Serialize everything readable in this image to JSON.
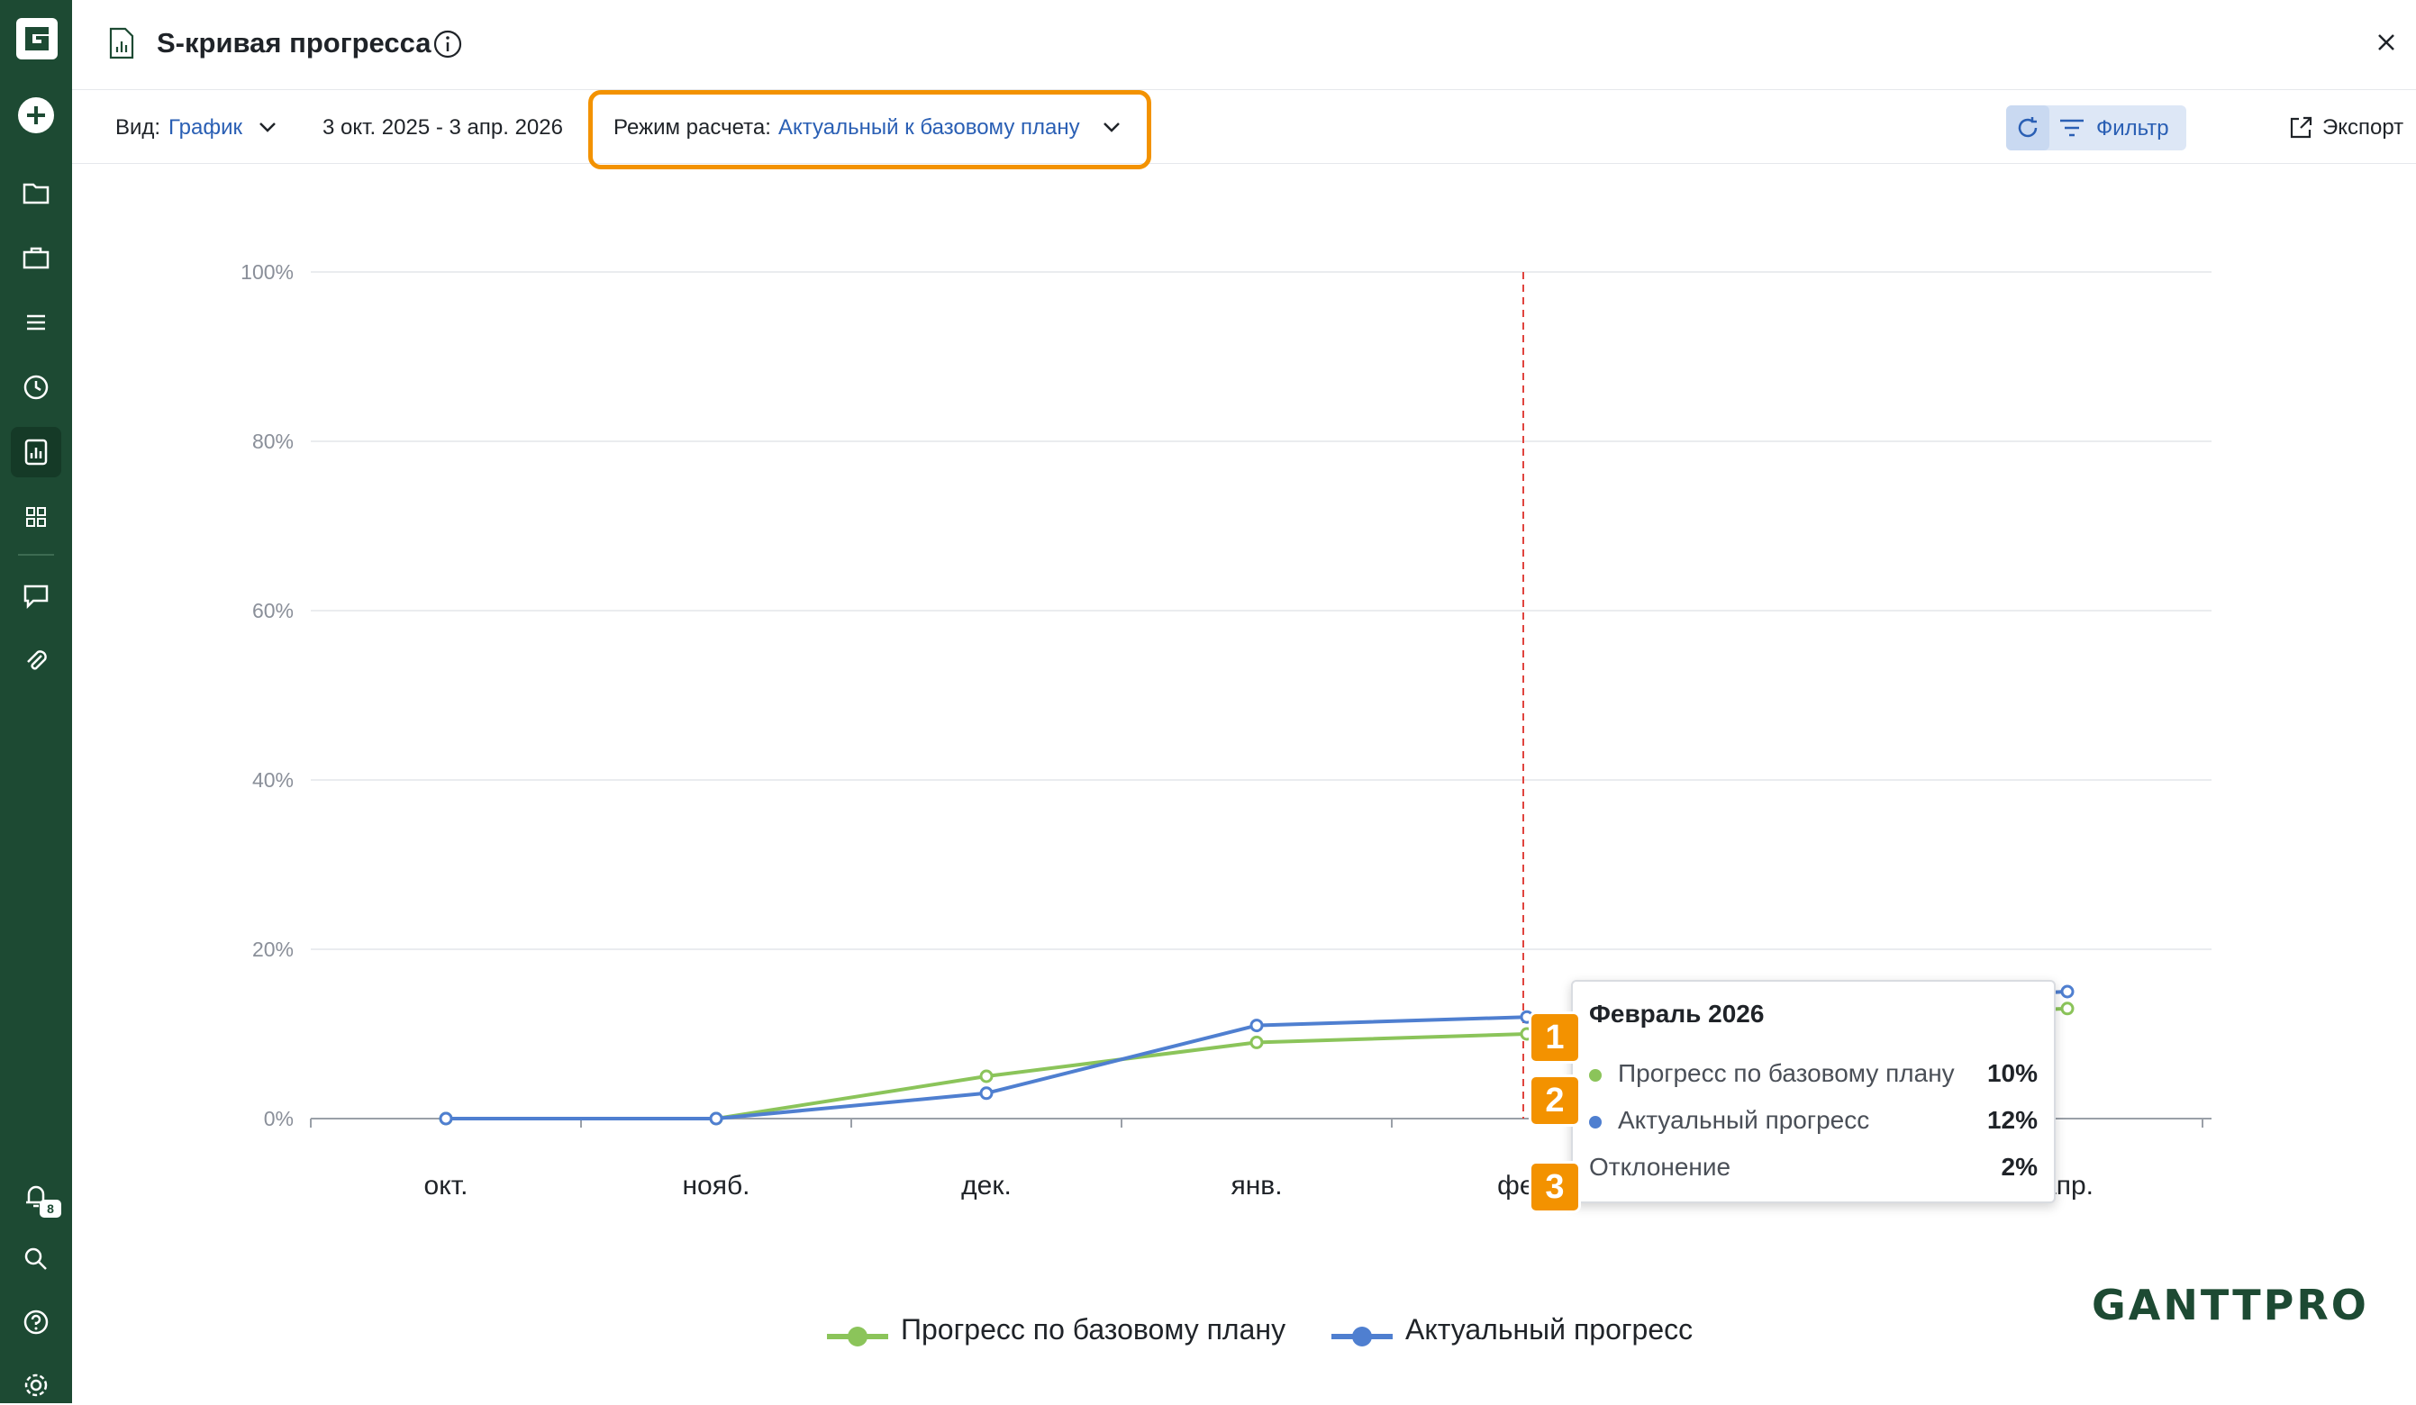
{
  "header": {
    "title": "S-кривая прогресса"
  },
  "toolbar": {
    "view_label": "Вид:",
    "view_value": "График",
    "date_range": "3 окт. 2025 - 3 апр. 2026",
    "mode_label": "Режим расчета:",
    "mode_value": "Актуальный к базовому плану",
    "filter_label": "Фильтр",
    "export_label": "Экспорт"
  },
  "sidebar": {
    "notifications_count": "8"
  },
  "colors": {
    "sidebar": "#1d4a33",
    "accent": "#f39200",
    "baseline": "#8bc45a",
    "actual": "#4f7fd0",
    "link": "#2a5fb4"
  },
  "chart_data": {
    "type": "line",
    "categories": [
      "окт.",
      "нояб.",
      "дек.",
      "янв.",
      "фев.",
      "мар.",
      "апр."
    ],
    "y_ticks": [
      "0%",
      "20%",
      "40%",
      "60%",
      "80%",
      "100%"
    ],
    "ylim": [
      0,
      100
    ],
    "grid": true,
    "legend_position": "bottom",
    "current_date_marker": "фев.",
    "series": [
      {
        "name": "Прогресс по базовому плану",
        "values": [
          0,
          0,
          5,
          9,
          10,
          11.5,
          13
        ]
      },
      {
        "name": "Актуальный прогресс",
        "values": [
          0,
          0,
          3,
          11,
          12,
          13.5,
          15
        ]
      }
    ]
  },
  "tooltip": {
    "title": "Февраль 2026",
    "rows": [
      {
        "label": "Прогресс по базовому плану",
        "value": "10%"
      },
      {
        "label": "Актуальный прогресс",
        "value": "12%"
      }
    ],
    "deviation_label": "Отклонение",
    "deviation_value": "2%"
  },
  "markers": [
    "1",
    "2",
    "3"
  ],
  "legend": {
    "baseline": "Прогресс по базовому плану",
    "actual": "Актуальный прогресс"
  },
  "brand": "GANTTPRO"
}
